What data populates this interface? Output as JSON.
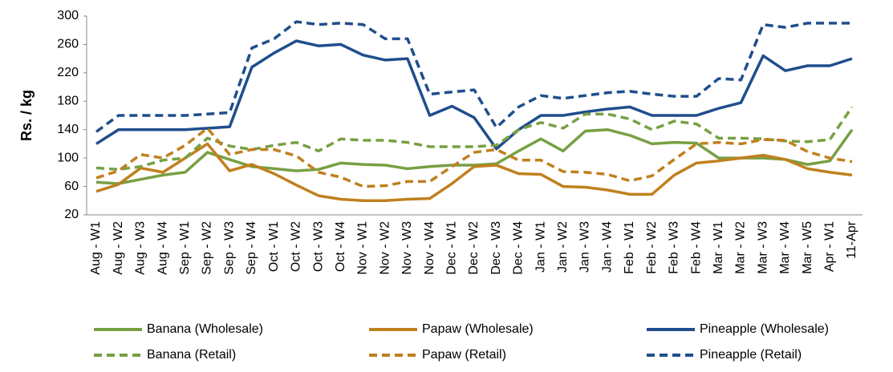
{
  "chart_data": {
    "type": "line",
    "y_label": "Rs. / kg",
    "categories": [
      "Aug - W1",
      "Aug - W2",
      "Aug - W3",
      "Aug - W4",
      "Sep - W1",
      "Sep - W2",
      "Sep - W3",
      "Sep - W4",
      "Oct - W1",
      "Oct - W2",
      "Oct - W3",
      "Oct - W4",
      "Nov - W1",
      "Nov - W2",
      "Nov - W3",
      "Nov - W4",
      "Dec - W1",
      "Dec - W2",
      "Dec - W3",
      "Dec - W4",
      "Jan - W1",
      "Jan - W2",
      "Jan - W3",
      "Jan - W4",
      "Feb - W1",
      "Feb - W2",
      "Feb - W3",
      "Feb - W4",
      "Mar - W1",
      "Mar - W2",
      "Mar - W3",
      "Mar - W4",
      "Mar - W5",
      "Apr - W1",
      "11-Apr"
    ],
    "ylim": [
      20,
      300
    ],
    "yticks": [
      20,
      60,
      100,
      140,
      180,
      220,
      260,
      300
    ],
    "legend": "bottom",
    "series": [
      {
        "name": "Banana (Wholesale)",
        "color": "#77a043",
        "line_style": "solid",
        "values": [
          66,
          64,
          70,
          76,
          80,
          108,
          98,
          88,
          85,
          82,
          84,
          93,
          91,
          90,
          85,
          88,
          90,
          90,
          92,
          110,
          127,
          110,
          138,
          140,
          132,
          120,
          122,
          121,
          100,
          100,
          100,
          98,
          91,
          96,
          140
        ]
      },
      {
        "name": "Papaw (Wholesale)",
        "color": "#c0801e",
        "line_style": "solid",
        "values": [
          53,
          63,
          86,
          80,
          100,
          120,
          82,
          91,
          78,
          62,
          47,
          42,
          40,
          40,
          42,
          43,
          64,
          88,
          90,
          78,
          77,
          60,
          59,
          55,
          49,
          49,
          76,
          93,
          96,
          100,
          104,
          98,
          85,
          80,
          76
        ]
      },
      {
        "name": "Pineapple (Wholesale)",
        "color": "#1f4e8c",
        "line_style": "solid",
        "values": [
          120,
          140,
          140,
          140,
          140,
          142,
          144,
          228,
          248,
          265,
          258,
          260,
          245,
          238,
          240,
          160,
          173,
          157,
          113,
          140,
          160,
          160,
          165,
          169,
          172,
          160,
          160,
          160,
          170,
          178,
          244,
          223,
          230,
          230,
          240
        ]
      },
      {
        "name": "Banana (Retail)",
        "color": "#77a043",
        "line_style": "dashed",
        "values": [
          86,
          84,
          88,
          97,
          100,
          128,
          117,
          112,
          118,
          122,
          110,
          127,
          125,
          125,
          122,
          116,
          116,
          116,
          118,
          140,
          150,
          142,
          162,
          162,
          155,
          140,
          152,
          148,
          128,
          128,
          127,
          124,
          123,
          126,
          172
        ]
      },
      {
        "name": "Papaw (Retail)",
        "color": "#c0801e",
        "line_style": "dashed",
        "values": [
          72,
          82,
          105,
          100,
          118,
          142,
          105,
          112,
          112,
          103,
          80,
          73,
          60,
          61,
          67,
          67,
          88,
          108,
          112,
          97,
          97,
          81,
          80,
          77,
          68,
          75,
          98,
          120,
          122,
          120,
          126,
          125,
          109,
          100,
          95
        ]
      },
      {
        "name": "Pineapple (Retail)",
        "color": "#1f4e8c",
        "line_style": "dashed",
        "values": [
          137,
          160,
          160,
          160,
          160,
          162,
          164,
          255,
          268,
          292,
          288,
          290,
          288,
          268,
          268,
          190,
          193,
          196,
          143,
          172,
          188,
          184,
          188,
          192,
          194,
          190,
          187,
          187,
          212,
          210,
          288,
          284,
          290,
          290,
          290
        ]
      }
    ]
  }
}
